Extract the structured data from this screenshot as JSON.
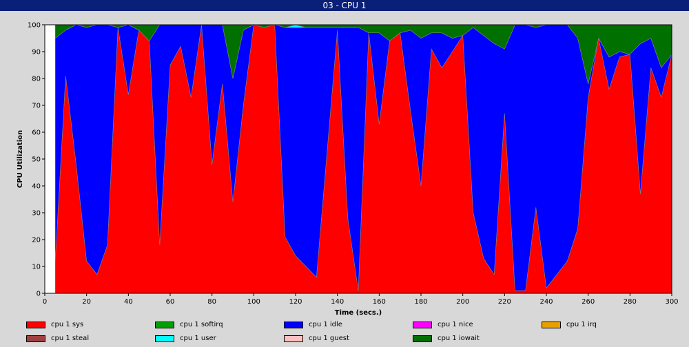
{
  "window": {
    "title": "03 - CPU 1"
  },
  "chart_data": {
    "type": "area",
    "stacked": true,
    "title": "",
    "xlabel": "Time (secs.)",
    "ylabel": "CPU Utilization",
    "xlim": [
      0,
      300
    ],
    "ylim": [
      0,
      100
    ],
    "xticks": [
      0,
      20,
      40,
      60,
      80,
      100,
      120,
      140,
      160,
      180,
      200,
      220,
      240,
      260,
      280,
      300
    ],
    "yticks": [
      0,
      10,
      20,
      30,
      40,
      50,
      60,
      70,
      80,
      90,
      100
    ],
    "grid": false,
    "legend_position": "bottom",
    "x": [
      5,
      10,
      15,
      20,
      25,
      30,
      35,
      40,
      45,
      50,
      55,
      60,
      65,
      70,
      75,
      80,
      85,
      90,
      95,
      100,
      105,
      110,
      115,
      120,
      125,
      130,
      135,
      140,
      145,
      150,
      155,
      160,
      165,
      170,
      175,
      180,
      185,
      190,
      195,
      200,
      205,
      210,
      215,
      220,
      225,
      230,
      235,
      240,
      245,
      250,
      255,
      260,
      265,
      270,
      275,
      280,
      285,
      290,
      295,
      300
    ],
    "series": [
      {
        "name": "cpu 1 sys",
        "color": "#ff0000",
        "values": [
          12,
          81,
          48,
          12,
          7,
          18,
          99,
          74,
          98,
          94,
          18,
          85,
          92,
          73,
          100,
          48,
          78,
          34,
          70,
          100,
          99,
          100,
          21,
          14,
          10,
          6,
          52,
          98,
          28,
          1,
          97,
          63,
          94,
          97,
          68,
          40,
          91,
          84,
          90,
          96,
          30,
          13,
          7,
          67,
          1,
          1,
          32,
          2,
          7,
          12,
          24,
          73,
          95,
          76,
          88,
          89,
          37,
          84,
          73,
          89
        ]
      },
      {
        "name": "cpu 1 softirq",
        "color": "#00a000",
        "values": [
          0,
          0,
          0,
          0,
          0,
          0,
          0,
          0,
          0,
          0,
          0,
          0,
          0,
          0,
          0,
          0,
          0,
          0,
          0,
          0,
          0,
          0,
          0,
          0,
          0,
          0,
          0,
          0,
          0,
          0,
          0,
          0,
          0,
          0,
          0,
          0,
          0,
          0,
          0,
          0,
          0,
          0,
          0,
          0,
          0,
          0,
          0,
          0,
          0,
          0,
          0,
          0,
          0,
          0,
          0,
          0,
          0,
          0,
          0,
          0
        ]
      },
      {
        "name": "cpu 1 idle",
        "color": "#0000ff",
        "values": [
          83,
          17,
          52,
          87,
          93,
          82,
          0,
          26,
          0,
          0,
          82,
          15,
          8,
          27,
          0,
          52,
          22,
          46,
          28,
          0,
          0,
          0,
          78,
          85,
          89,
          93,
          47,
          1,
          71,
          98,
          0,
          34,
          0,
          0,
          30,
          55,
          6,
          13,
          5,
          0,
          69,
          83,
          86,
          24,
          99,
          99,
          67,
          98,
          93,
          88,
          71,
          5,
          0,
          12,
          2,
          0,
          56,
          11,
          11,
          0
        ]
      },
      {
        "name": "cpu 1 nice",
        "color": "#ff00ff",
        "values": [
          0,
          0,
          0,
          0,
          0,
          0,
          0,
          0,
          0,
          0,
          0,
          0,
          0,
          0,
          0,
          0,
          0,
          0,
          0,
          0,
          0,
          0,
          0,
          0,
          0,
          0,
          0,
          0,
          0,
          0,
          0,
          0,
          0,
          0,
          0,
          0,
          0,
          0,
          0,
          0,
          0,
          0,
          0,
          0,
          0,
          0,
          0,
          0,
          0,
          0,
          0,
          0,
          0,
          0,
          0,
          0,
          0,
          0,
          0,
          0
        ]
      },
      {
        "name": "cpu 1 irq",
        "color": "#e8a000",
        "values": [
          0,
          0,
          0,
          0,
          0,
          0,
          0,
          0,
          0,
          0,
          0,
          0,
          0,
          0,
          0,
          0,
          0,
          0,
          0,
          0,
          0,
          0,
          0,
          0,
          0,
          0,
          0,
          0,
          0,
          0,
          0,
          0,
          0,
          0,
          0,
          0,
          0,
          0,
          0,
          0,
          0,
          0,
          0,
          0,
          0,
          0,
          0,
          0,
          0,
          0,
          0,
          0,
          0,
          0,
          0,
          0,
          0,
          0,
          0,
          0
        ]
      },
      {
        "name": "cpu 1 steal",
        "color": "#a04040",
        "values": [
          0,
          0,
          0,
          0,
          0,
          0,
          0,
          0,
          0,
          0,
          0,
          0,
          0,
          0,
          0,
          0,
          0,
          0,
          0,
          0,
          0,
          0,
          0,
          0,
          0,
          0,
          0,
          0,
          0,
          0,
          0,
          0,
          0,
          0,
          0,
          0,
          0,
          0,
          0,
          0,
          0,
          0,
          0,
          0,
          0,
          0,
          0,
          0,
          0,
          0,
          0,
          0,
          0,
          0,
          0,
          0,
          0,
          0,
          0,
          0
        ]
      },
      {
        "name": "cpu 1 user",
        "color": "#00ffff",
        "values": [
          0,
          0,
          0,
          0,
          0,
          0,
          0,
          0,
          0,
          0,
          0,
          0,
          0,
          0,
          0,
          0,
          0,
          0,
          0,
          0,
          0,
          0,
          0,
          1,
          0,
          0,
          0,
          0,
          0,
          0,
          0,
          0,
          0,
          0,
          0,
          0,
          0,
          0,
          0,
          0,
          0,
          0,
          0,
          0,
          0,
          0,
          0,
          0,
          0,
          0,
          0,
          0,
          0,
          0,
          0,
          0,
          0,
          0,
          0,
          0
        ]
      },
      {
        "name": "cpu 1 guest",
        "color": "#ffc0c0",
        "values": [
          0,
          0,
          0,
          0,
          0,
          0,
          0,
          0,
          0,
          0,
          0,
          0,
          0,
          0,
          0,
          0,
          0,
          0,
          0,
          0,
          0,
          0,
          0,
          0,
          0,
          0,
          0,
          0,
          0,
          0,
          0,
          0,
          0,
          0,
          0,
          0,
          0,
          0,
          0,
          0,
          0,
          0,
          0,
          0,
          0,
          0,
          0,
          0,
          0,
          0,
          0,
          0,
          0,
          0,
          0,
          0,
          0,
          0,
          0,
          0
        ]
      },
      {
        "name": "cpu 1 iowait",
        "color": "#007000",
        "values": [
          5,
          2,
          0,
          1,
          0,
          0,
          1,
          0,
          2,
          6,
          0,
          0,
          0,
          0,
          0,
          0,
          0,
          20,
          2,
          0,
          1,
          0,
          1,
          0,
          1,
          1,
          1,
          1,
          1,
          1,
          3,
          3,
          6,
          3,
          2,
          5,
          3,
          3,
          5,
          4,
          1,
          4,
          7,
          9,
          0,
          0,
          1,
          0,
          0,
          0,
          5,
          22,
          5,
          12,
          10,
          11,
          7,
          5,
          16,
          11
        ]
      }
    ]
  }
}
